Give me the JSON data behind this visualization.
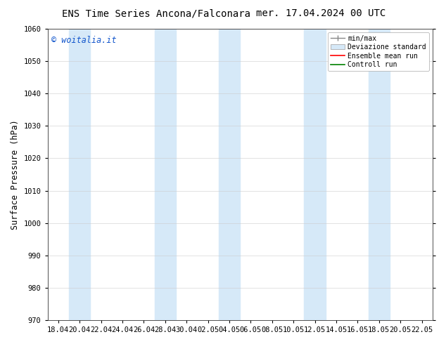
{
  "title_left": "ENS Time Series Ancona/Falconara",
  "title_right": "mer. 17.04.2024 00 UTC",
  "ylabel": "Surface Pressure (hPa)",
  "ylim": [
    970,
    1060
  ],
  "yticks": [
    970,
    980,
    990,
    1000,
    1010,
    1020,
    1030,
    1040,
    1050,
    1060
  ],
  "watermark": "© woitalia.it",
  "legend_entries": [
    "min/max",
    "Deviazione standard",
    "Ensemble mean run",
    "Controll run"
  ],
  "x_tick_labels": [
    "18.04",
    "20.04",
    "22.04",
    "24.04",
    "26.04",
    "28.04",
    "30.04",
    "02.05",
    "04.05",
    "06.05",
    "08.05",
    "10.05",
    "12.05",
    "14.05",
    "16.05",
    "18.05",
    "20.05",
    "22.05"
  ],
  "shaded_band_color": "#d6e9f8",
  "background_color": "#ffffff",
  "title_fontsize": 10,
  "tick_fontsize": 7.5,
  "ylabel_fontsize": 8.5,
  "band_indices": [
    1,
    5,
    8,
    12,
    15
  ],
  "n_ticks": 18
}
